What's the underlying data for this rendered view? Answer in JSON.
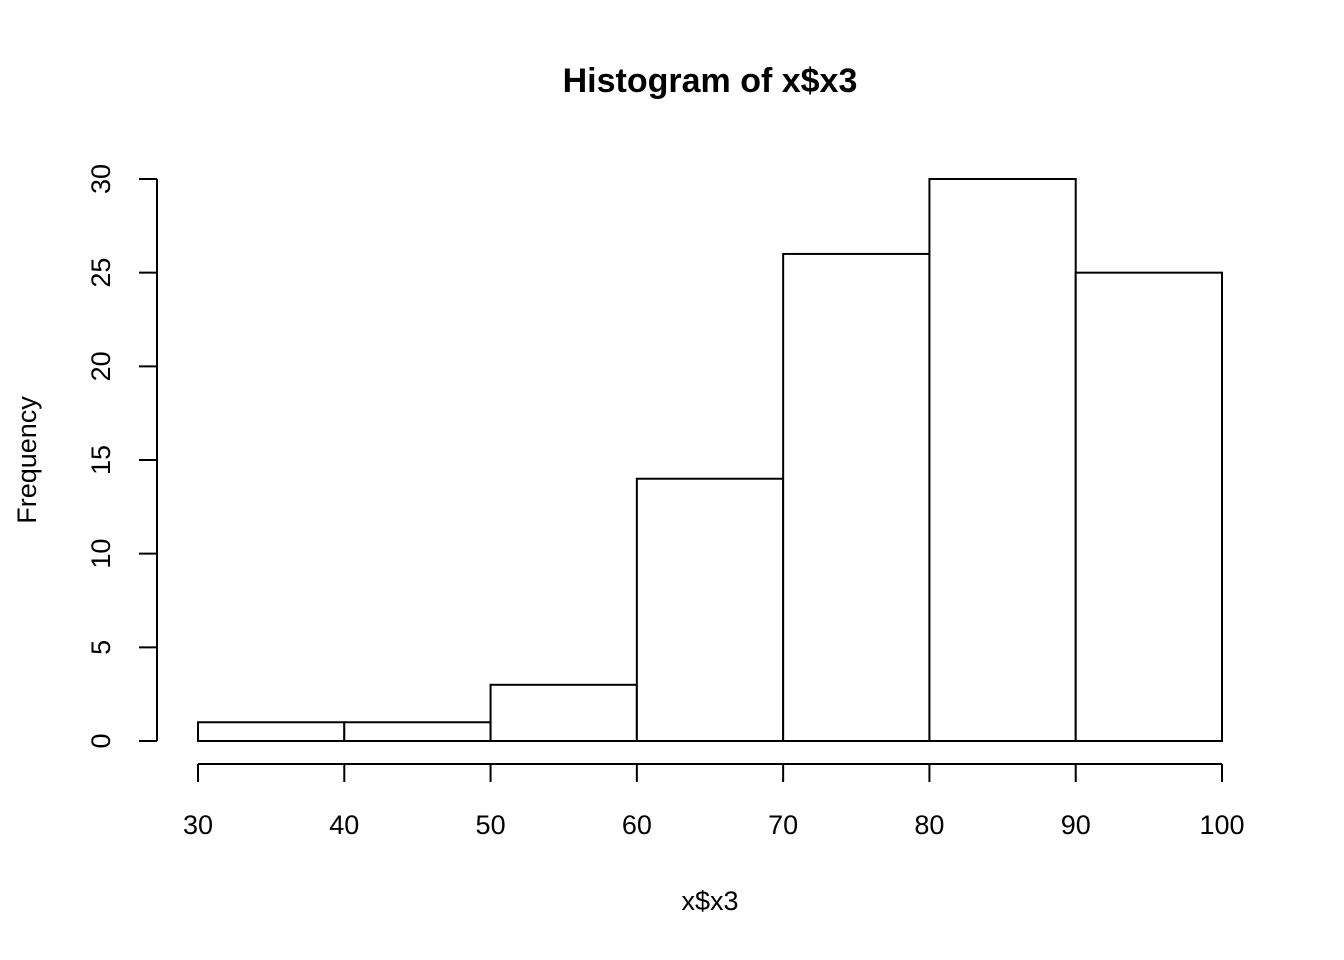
{
  "chart_data": {
    "type": "bar",
    "title": "Histogram of x$x3",
    "xlabel": "x$x3",
    "ylabel": "Frequency",
    "bins": [
      {
        "from": 30,
        "to": 40,
        "count": 1
      },
      {
        "from": 40,
        "to": 50,
        "count": 1
      },
      {
        "from": 50,
        "to": 60,
        "count": 3
      },
      {
        "from": 60,
        "to": 70,
        "count": 14
      },
      {
        "from": 70,
        "to": 80,
        "count": 26
      },
      {
        "from": 80,
        "to": 90,
        "count": 30
      },
      {
        "from": 90,
        "to": 100,
        "count": 25
      }
    ],
    "xlim": [
      30,
      100
    ],
    "ylim": [
      0,
      30
    ],
    "xticks": [
      30,
      40,
      50,
      60,
      70,
      80,
      90,
      100
    ],
    "yticks": [
      0,
      5,
      10,
      15,
      20,
      25,
      30
    ],
    "grid": false,
    "bar_fill": "#ffffff",
    "bar_stroke": "#000000"
  }
}
